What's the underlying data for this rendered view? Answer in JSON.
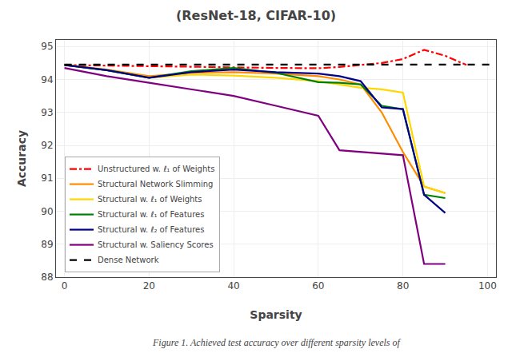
{
  "chart_data": {
    "type": "line",
    "title": "(ResNet-18, CIFAR-10)",
    "xlabel": "Sparsity",
    "ylabel": "Accuracy",
    "xlim": [
      -2,
      102
    ],
    "ylim": [
      88,
      95.2
    ],
    "xticks": [
      0,
      20,
      40,
      60,
      80,
      100
    ],
    "yticks": [
      88,
      89,
      90,
      91,
      92,
      93,
      94,
      95
    ],
    "grid": true,
    "legend": "lower left",
    "annotations": [
      "Figure 1. Achieved test accuracy over different sparsity levels of"
    ],
    "series": [
      {
        "name": "Unstructured w. ℓ₁ of Weights",
        "color": "#ff0000",
        "line_style": "dashdot",
        "x": [
          0,
          10,
          20,
          30,
          40,
          50,
          60,
          65,
          70,
          75,
          80,
          85,
          90,
          95
        ],
        "values": [
          94.44,
          94.42,
          94.4,
          94.38,
          94.36,
          94.35,
          94.34,
          94.38,
          94.44,
          94.5,
          94.62,
          94.9,
          94.72,
          94.44
        ]
      },
      {
        "name": "Structural Network Slimming",
        "color": "#ff8c00",
        "line_style": "solid",
        "x": [
          0,
          10,
          20,
          30,
          40,
          50,
          60,
          65,
          70,
          75,
          80,
          85,
          90
        ],
        "values": [
          94.44,
          94.3,
          94.1,
          94.2,
          94.22,
          94.18,
          94.1,
          94.0,
          93.85,
          93.0,
          91.8,
          90.75,
          90.55
        ]
      },
      {
        "name": "Structural w. ℓ₁ of Weights",
        "color": "#ffd700",
        "line_style": "solid",
        "x": [
          0,
          10,
          20,
          30,
          40,
          50,
          60,
          65,
          70,
          75,
          80,
          85,
          90
        ],
        "values": [
          94.44,
          94.28,
          94.05,
          94.15,
          94.12,
          94.05,
          93.95,
          93.85,
          93.75,
          93.7,
          93.6,
          90.75,
          90.55
        ]
      },
      {
        "name": "Structural w. ℓ₁ of Features",
        "color": "#008000",
        "line_style": "solid",
        "x": [
          0,
          10,
          20,
          30,
          40,
          50,
          60,
          65,
          70,
          75,
          80,
          85,
          90
        ],
        "values": [
          94.44,
          94.28,
          94.05,
          94.25,
          94.35,
          94.2,
          93.92,
          93.9,
          93.85,
          93.2,
          93.1,
          90.5,
          90.4
        ]
      },
      {
        "name": "Structural w. ℓ₂ of Features",
        "color": "#00008b",
        "line_style": "solid",
        "x": [
          0,
          10,
          20,
          30,
          40,
          50,
          60,
          65,
          70,
          75,
          80,
          85,
          90
        ],
        "values": [
          94.44,
          94.28,
          94.05,
          94.22,
          94.3,
          94.22,
          94.18,
          94.1,
          93.95,
          93.15,
          93.1,
          90.5,
          89.95
        ]
      },
      {
        "name": "Structural w. Saliency Scores",
        "color": "#800080",
        "line_style": "solid",
        "x": [
          0,
          10,
          20,
          30,
          40,
          50,
          60,
          65,
          70,
          75,
          80,
          85,
          90
        ],
        "values": [
          94.35,
          94.1,
          93.9,
          93.7,
          93.5,
          93.2,
          92.9,
          91.85,
          91.8,
          91.75,
          91.7,
          88.4,
          88.4
        ]
      },
      {
        "name": "Dense Network",
        "color": "#000000",
        "line_style": "dashed",
        "x": [
          0,
          102
        ],
        "values": [
          94.45,
          94.45
        ]
      }
    ]
  }
}
